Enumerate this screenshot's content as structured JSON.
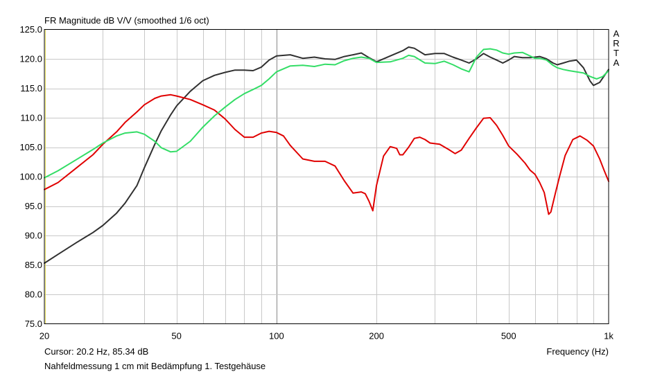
{
  "chart_data": {
    "type": "line",
    "title": "FR Magnitude dB V/V (smoothed 1/6 oct)",
    "xlabel": "Frequency (Hz)",
    "ylabel": "",
    "xscale": "log",
    "xlim": [
      20,
      1000
    ],
    "ylim": [
      75,
      125
    ],
    "grid": true,
    "x_ticks": [
      20,
      50,
      100,
      200,
      500,
      1000
    ],
    "x_tick_labels": [
      "20",
      "50",
      "100",
      "200",
      "500",
      "1k"
    ],
    "y_ticks": [
      75,
      80,
      85,
      90,
      95,
      100,
      105,
      110,
      115,
      120,
      125
    ],
    "y_tick_labels": [
      "75.0",
      "80.0",
      "85.0",
      "90.0",
      "95.0",
      "100.0",
      "105.0",
      "110.0",
      "115.0",
      "120.0",
      "125.0"
    ],
    "series": [
      {
        "color": "#303030",
        "points": [
          [
            20,
            85.3
          ],
          [
            22,
            86.8
          ],
          [
            25,
            88.8
          ],
          [
            28,
            90.5
          ],
          [
            30,
            91.7
          ],
          [
            33,
            93.8
          ],
          [
            35,
            95.5
          ],
          [
            38,
            98.5
          ],
          [
            40,
            101.5
          ],
          [
            43,
            105.5
          ],
          [
            45,
            107.8
          ],
          [
            48,
            110.5
          ],
          [
            50,
            112.0
          ],
          [
            55,
            114.5
          ],
          [
            60,
            116.3
          ],
          [
            65,
            117.2
          ],
          [
            70,
            117.7
          ],
          [
            75,
            118.1
          ],
          [
            80,
            118.1
          ],
          [
            85,
            118.0
          ],
          [
            90,
            118.6
          ],
          [
            95,
            119.8
          ],
          [
            100,
            120.5
          ],
          [
            110,
            120.7
          ],
          [
            120,
            120.1
          ],
          [
            130,
            120.3
          ],
          [
            140,
            120.0
          ],
          [
            150,
            119.9
          ],
          [
            160,
            120.4
          ],
          [
            170,
            120.7
          ],
          [
            180,
            121.0
          ],
          [
            190,
            120.2
          ],
          [
            200,
            119.5
          ],
          [
            220,
            120.5
          ],
          [
            240,
            121.4
          ],
          [
            250,
            122.0
          ],
          [
            260,
            121.8
          ],
          [
            280,
            120.7
          ],
          [
            300,
            120.9
          ],
          [
            320,
            120.9
          ],
          [
            340,
            120.3
          ],
          [
            360,
            119.8
          ],
          [
            380,
            119.3
          ],
          [
            400,
            120.0
          ],
          [
            420,
            120.9
          ],
          [
            440,
            120.3
          ],
          [
            460,
            119.8
          ],
          [
            480,
            119.3
          ],
          [
            500,
            119.8
          ],
          [
            520,
            120.4
          ],
          [
            550,
            120.2
          ],
          [
            580,
            120.2
          ],
          [
            600,
            120.3
          ],
          [
            620,
            120.4
          ],
          [
            650,
            120.0
          ],
          [
            680,
            119.3
          ],
          [
            700,
            119.0
          ],
          [
            730,
            119.3
          ],
          [
            760,
            119.6
          ],
          [
            800,
            119.8
          ],
          [
            840,
            118.5
          ],
          [
            880,
            116.2
          ],
          [
            900,
            115.5
          ],
          [
            940,
            116.0
          ],
          [
            1000,
            118.2
          ]
        ]
      },
      {
        "color": "#e00000",
        "points": [
          [
            20,
            97.8
          ],
          [
            22,
            99.0
          ],
          [
            25,
            101.5
          ],
          [
            28,
            103.7
          ],
          [
            30,
            105.5
          ],
          [
            33,
            107.6
          ],
          [
            35,
            109.2
          ],
          [
            38,
            111.0
          ],
          [
            40,
            112.2
          ],
          [
            43,
            113.3
          ],
          [
            45,
            113.7
          ],
          [
            48,
            113.9
          ],
          [
            50,
            113.7
          ],
          [
            55,
            113.1
          ],
          [
            60,
            112.2
          ],
          [
            65,
            111.3
          ],
          [
            70,
            109.8
          ],
          [
            75,
            108.0
          ],
          [
            80,
            106.7
          ],
          [
            85,
            106.7
          ],
          [
            90,
            107.4
          ],
          [
            95,
            107.7
          ],
          [
            100,
            107.5
          ],
          [
            105,
            106.9
          ],
          [
            110,
            105.3
          ],
          [
            120,
            103.0
          ],
          [
            130,
            102.6
          ],
          [
            140,
            102.6
          ],
          [
            150,
            101.8
          ],
          [
            160,
            99.3
          ],
          [
            170,
            97.2
          ],
          [
            180,
            97.4
          ],
          [
            185,
            97.1
          ],
          [
            190,
            95.8
          ],
          [
            195,
            94.2
          ],
          [
            200,
            98.5
          ],
          [
            210,
            103.5
          ],
          [
            220,
            105.1
          ],
          [
            230,
            104.8
          ],
          [
            235,
            103.7
          ],
          [
            240,
            103.7
          ],
          [
            250,
            105.0
          ],
          [
            260,
            106.5
          ],
          [
            270,
            106.7
          ],
          [
            280,
            106.3
          ],
          [
            290,
            105.7
          ],
          [
            310,
            105.5
          ],
          [
            330,
            104.6
          ],
          [
            345,
            103.9
          ],
          [
            360,
            104.5
          ],
          [
            380,
            106.5
          ],
          [
            400,
            108.3
          ],
          [
            420,
            109.9
          ],
          [
            440,
            110.0
          ],
          [
            460,
            108.7
          ],
          [
            480,
            107.0
          ],
          [
            500,
            105.2
          ],
          [
            530,
            103.8
          ],
          [
            560,
            102.3
          ],
          [
            580,
            101.1
          ],
          [
            600,
            100.4
          ],
          [
            620,
            99.0
          ],
          [
            640,
            97.3
          ],
          [
            660,
            93.6
          ],
          [
            670,
            94.0
          ],
          [
            690,
            97.0
          ],
          [
            710,
            99.8
          ],
          [
            740,
            103.6
          ],
          [
            780,
            106.3
          ],
          [
            820,
            106.9
          ],
          [
            860,
            106.2
          ],
          [
            900,
            105.2
          ],
          [
            940,
            103.0
          ],
          [
            970,
            101.0
          ],
          [
            1000,
            99.2
          ]
        ]
      },
      {
        "color": "#33dd66",
        "points": [
          [
            20,
            99.8
          ],
          [
            22,
            101.0
          ],
          [
            25,
            102.9
          ],
          [
            28,
            104.6
          ],
          [
            30,
            105.7
          ],
          [
            33,
            106.9
          ],
          [
            35,
            107.4
          ],
          [
            38,
            107.6
          ],
          [
            40,
            107.2
          ],
          [
            43,
            106.0
          ],
          [
            45,
            104.9
          ],
          [
            48,
            104.2
          ],
          [
            50,
            104.3
          ],
          [
            55,
            106.0
          ],
          [
            60,
            108.4
          ],
          [
            65,
            110.3
          ],
          [
            70,
            111.8
          ],
          [
            75,
            113.1
          ],
          [
            80,
            114.1
          ],
          [
            85,
            114.8
          ],
          [
            90,
            115.5
          ],
          [
            95,
            116.6
          ],
          [
            100,
            117.8
          ],
          [
            110,
            118.8
          ],
          [
            120,
            118.9
          ],
          [
            130,
            118.7
          ],
          [
            140,
            119.1
          ],
          [
            150,
            119.0
          ],
          [
            160,
            119.7
          ],
          [
            170,
            120.1
          ],
          [
            180,
            120.3
          ],
          [
            190,
            120.1
          ],
          [
            200,
            119.4
          ],
          [
            220,
            119.5
          ],
          [
            240,
            120.1
          ],
          [
            250,
            120.6
          ],
          [
            260,
            120.4
          ],
          [
            280,
            119.3
          ],
          [
            300,
            119.2
          ],
          [
            320,
            119.6
          ],
          [
            340,
            119.0
          ],
          [
            360,
            118.3
          ],
          [
            380,
            117.8
          ],
          [
            400,
            120.3
          ],
          [
            420,
            121.6
          ],
          [
            440,
            121.7
          ],
          [
            460,
            121.5
          ],
          [
            480,
            121.0
          ],
          [
            500,
            120.8
          ],
          [
            520,
            121.0
          ],
          [
            550,
            121.1
          ],
          [
            580,
            120.5
          ],
          [
            600,
            120.1
          ],
          [
            620,
            120.1
          ],
          [
            650,
            119.8
          ],
          [
            680,
            118.9
          ],
          [
            700,
            118.5
          ],
          [
            730,
            118.2
          ],
          [
            760,
            118.0
          ],
          [
            800,
            117.8
          ],
          [
            840,
            117.6
          ],
          [
            880,
            117.0
          ],
          [
            920,
            116.6
          ],
          [
            960,
            117.0
          ],
          [
            1000,
            118.0
          ]
        ]
      }
    ]
  },
  "footer": {
    "cursor_text": "Cursor: 20.2 Hz, 85.34 dB",
    "measurement_note": "Nahfeldmessung 1 cm mit Bedämpfung 1. Testgehäuse"
  },
  "watermark": {
    "letters": [
      "A",
      "R",
      "T",
      "A"
    ]
  }
}
